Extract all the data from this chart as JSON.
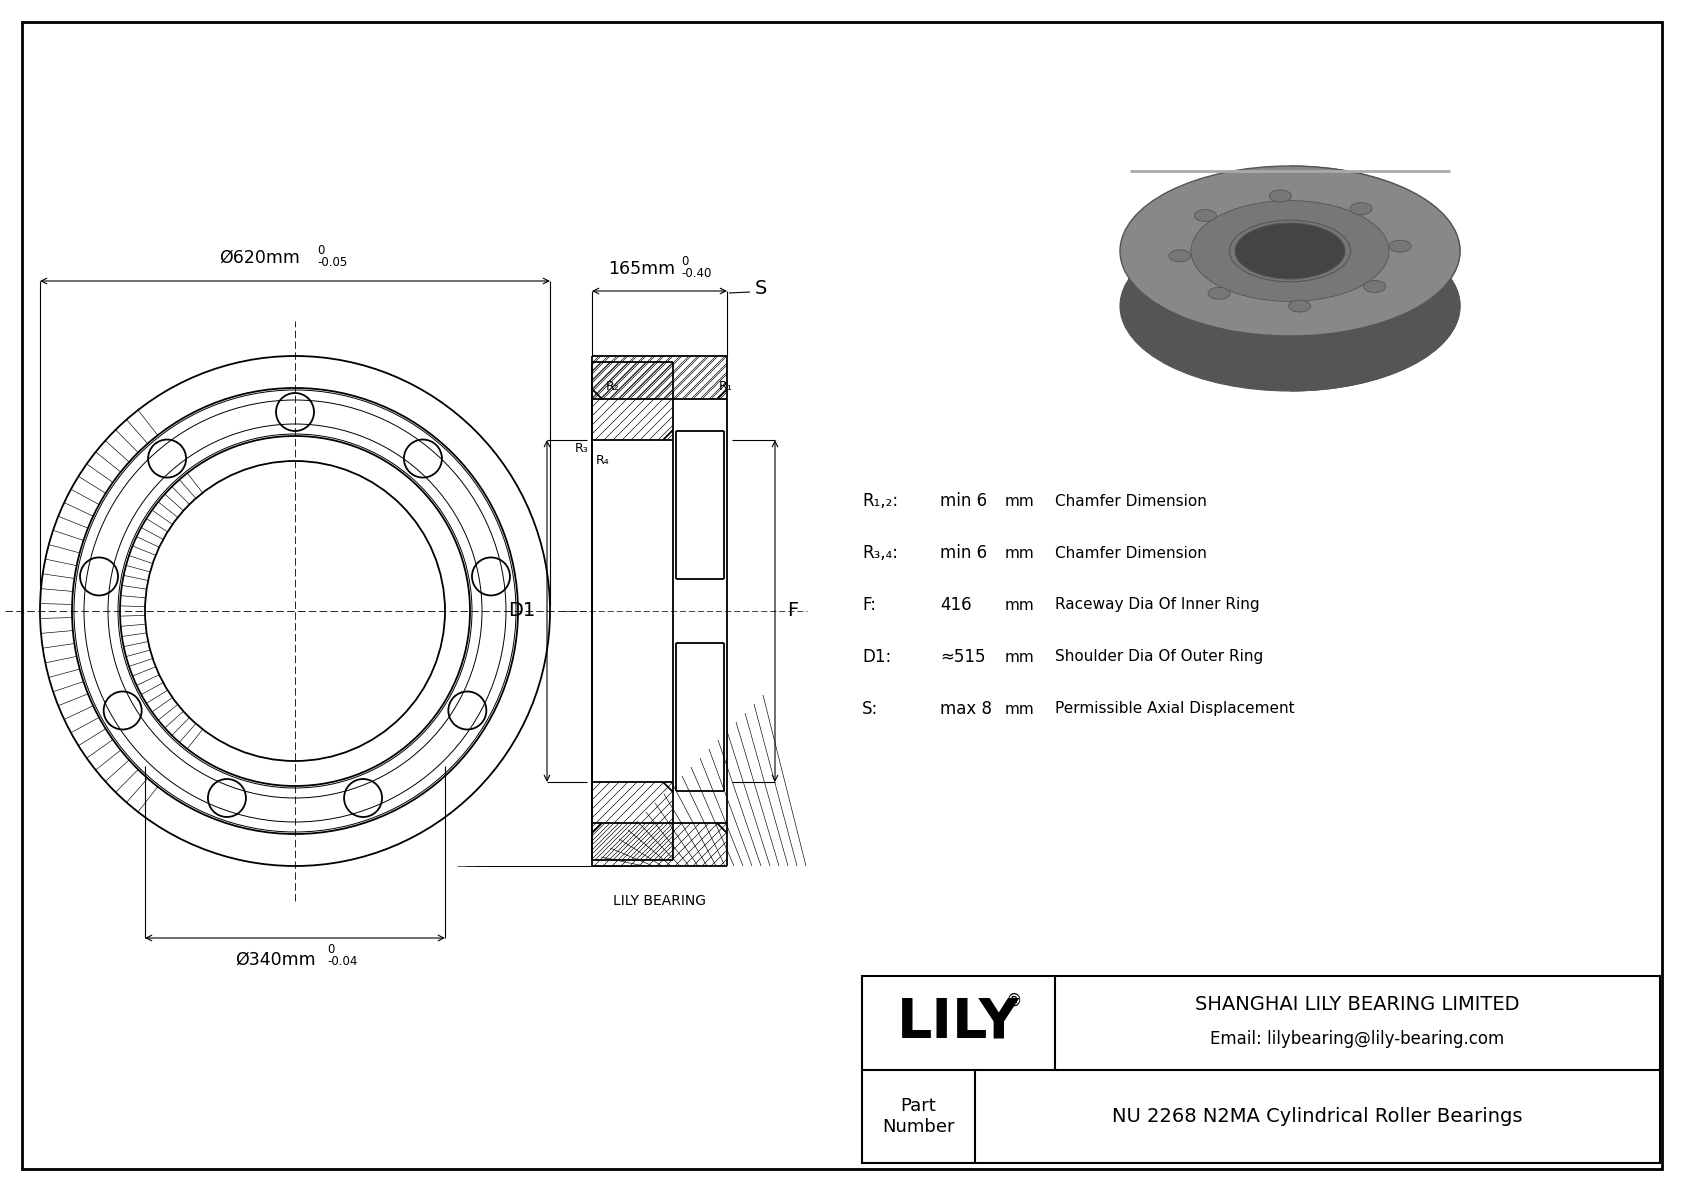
{
  "bg_color": "#ffffff",
  "line_color": "#000000",
  "title": "NU 2268 N2MA Cylindrical Roller Bearings",
  "company": "SHANGHAI LILY BEARING LIMITED",
  "email": "Email: lilybearing@lily-bearing.com",
  "part_label": "Part\nNumber",
  "lily_text": "LILY",
  "lily_reg": "®",
  "watermark": "LILY BEARING",
  "dim_od_label": "Ø620mm",
  "dim_od_tol_top": "0",
  "dim_od_tol_bot": "-0.05",
  "dim_id_label": "Ø340mm",
  "dim_id_tol_top": "0",
  "dim_id_tol_bot": "-0.04",
  "dim_w_label": "165mm",
  "dim_w_tol_top": "0",
  "dim_w_tol_bot": "-0.40",
  "label_D1": "D1",
  "label_F": "F",
  "label_S": "S",
  "label_R1": "R₁",
  "label_R2": "R₂",
  "label_R3": "R₃",
  "label_R4": "R₄",
  "spec_rows": [
    {
      "label": "R₁,₂:",
      "val": "min 6",
      "unit": "mm",
      "desc": "Chamfer Dimension"
    },
    {
      "label": "R₃,₄:",
      "val": "min 6",
      "unit": "mm",
      "desc": "Chamfer Dimension"
    },
    {
      "label": "F:",
      "val": "416",
      "unit": "mm",
      "desc": "Raceway Dia Of Inner Ring"
    },
    {
      "label": "D1:",
      "val": "≈515",
      "unit": "mm",
      "desc": "Shoulder Dia Of Outer Ring"
    },
    {
      "label": "S:",
      "val": "max 8",
      "unit": "mm",
      "desc": "Permissible Axial Displacement"
    }
  ]
}
